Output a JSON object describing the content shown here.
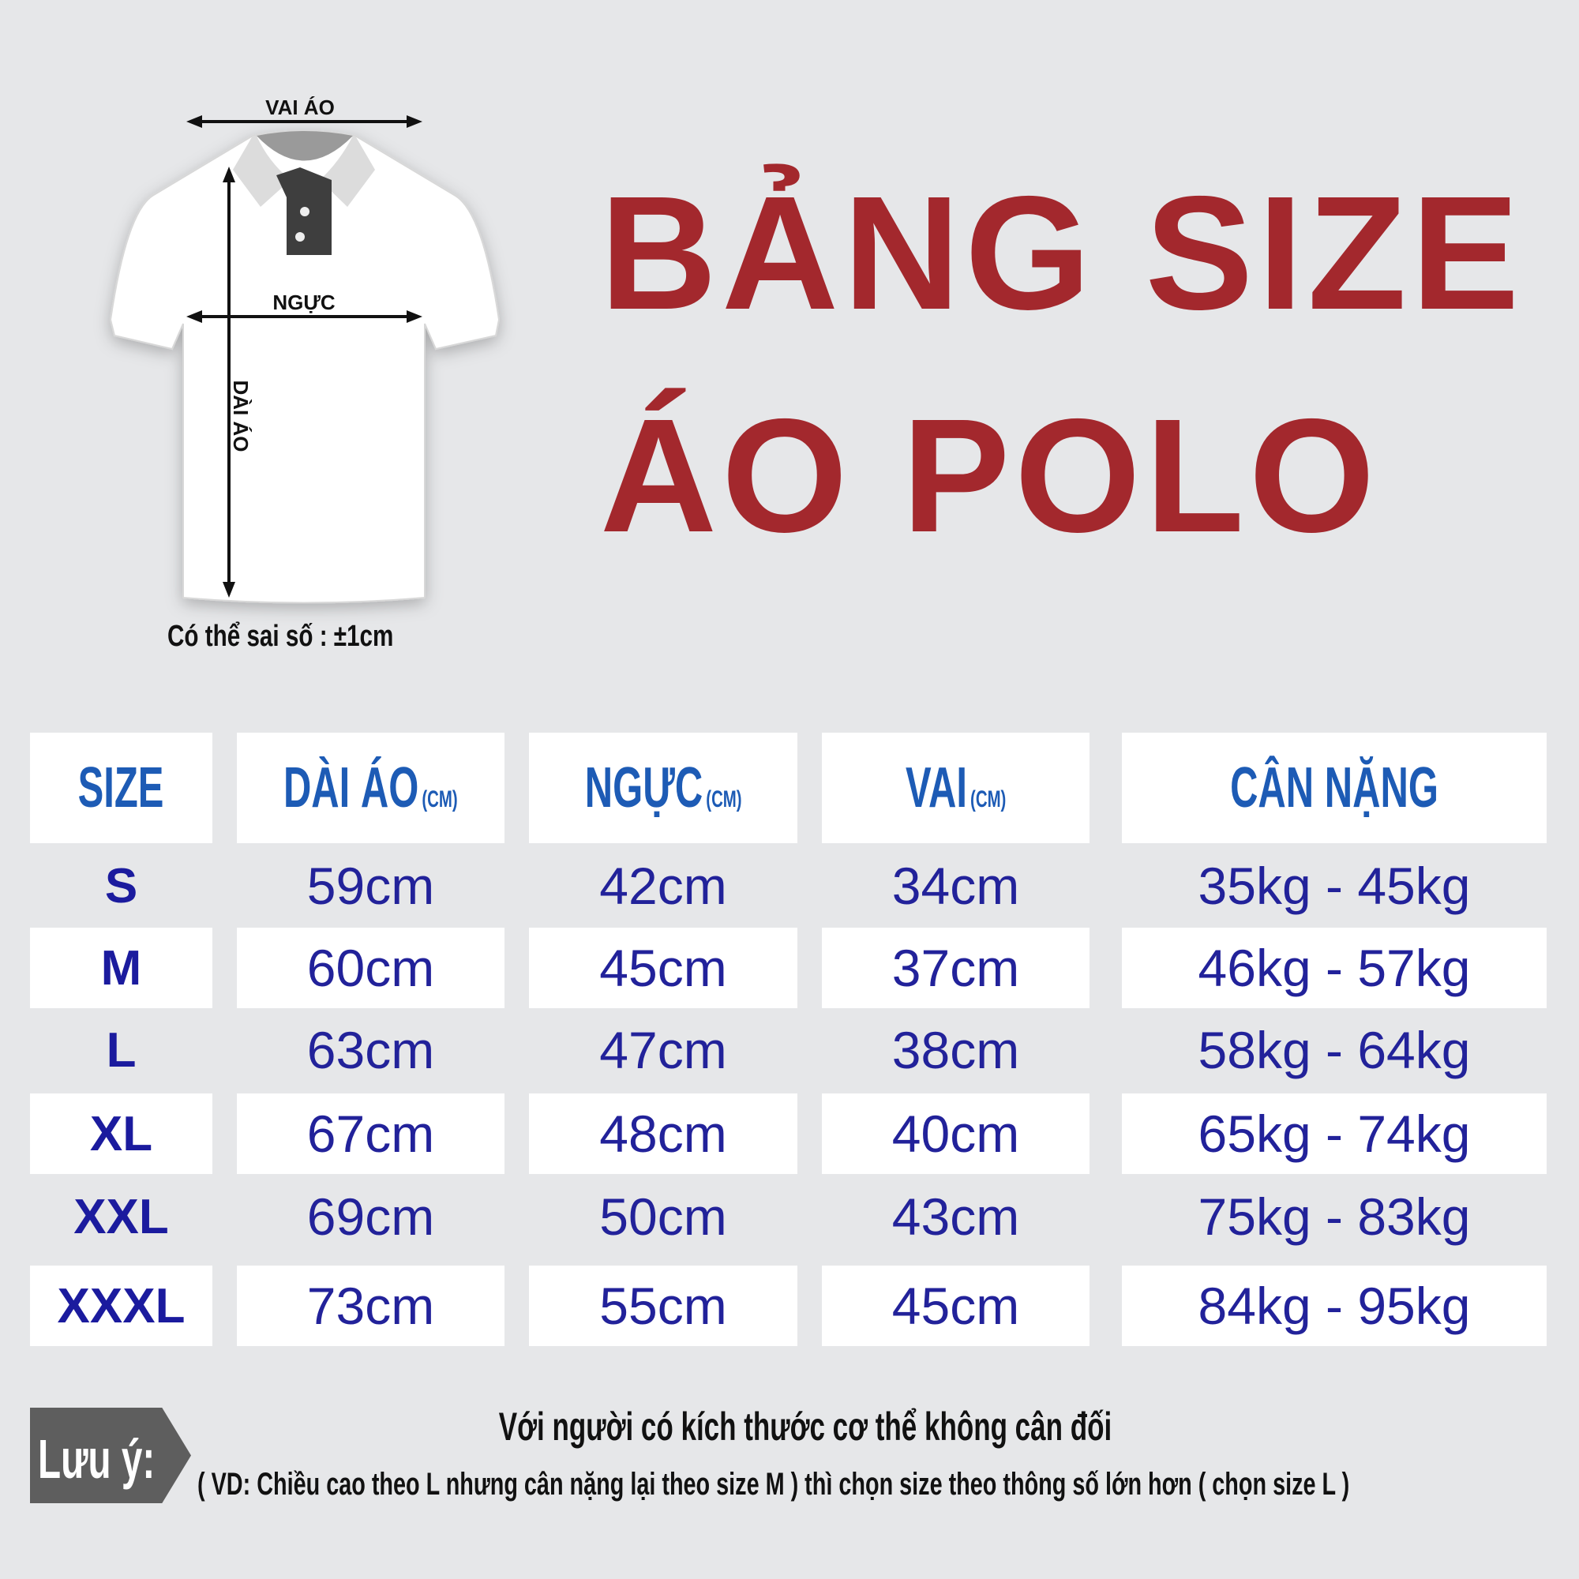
{
  "title": {
    "line1": "BẢNG SIZE",
    "line2": "ÁO POLO",
    "color": "#a3282d"
  },
  "diagram": {
    "shoulder_label": "VAI ÁO",
    "chest_label": "NGỰC",
    "length_label": "DÀI ÁO",
    "tolerance_note": "Có thể sai số : ±1cm"
  },
  "table": {
    "headers": [
      {
        "label": "SIZE",
        "unit": ""
      },
      {
        "label": "DÀI ÁO",
        "unit": "(CM)"
      },
      {
        "label": "NGỰC",
        "unit": "(CM)"
      },
      {
        "label": "VAI",
        "unit": "(CM)"
      },
      {
        "label": "CÂN NẶNG",
        "unit": ""
      }
    ],
    "rows": [
      [
        "S",
        "59cm",
        "42cm",
        "34cm",
        "35kg - 45kg"
      ],
      [
        "M",
        "60cm",
        "45cm",
        "37cm",
        "46kg - 57kg"
      ],
      [
        "L",
        "63cm",
        "47cm",
        "38cm",
        "58kg - 64kg"
      ],
      [
        "XL",
        "67cm",
        "48cm",
        "40cm",
        "65kg - 74kg"
      ],
      [
        "XXL",
        "69cm",
        "50cm",
        "43cm",
        "75kg - 83kg"
      ],
      [
        "XXXL",
        "73cm",
        "55cm",
        "45cm",
        "84kg - 95kg"
      ]
    ],
    "header_color": "#1d5bb5",
    "value_color": "#22229a"
  },
  "note": {
    "label": "Lưu ý:",
    "line1": "Với người có kích thước cơ thể không cân đối",
    "line2": "( VD: Chiều cao theo L nhưng cân nặng lại theo size M ) thì chọn size theo thông số lớn hơn ( chọn size L )"
  }
}
